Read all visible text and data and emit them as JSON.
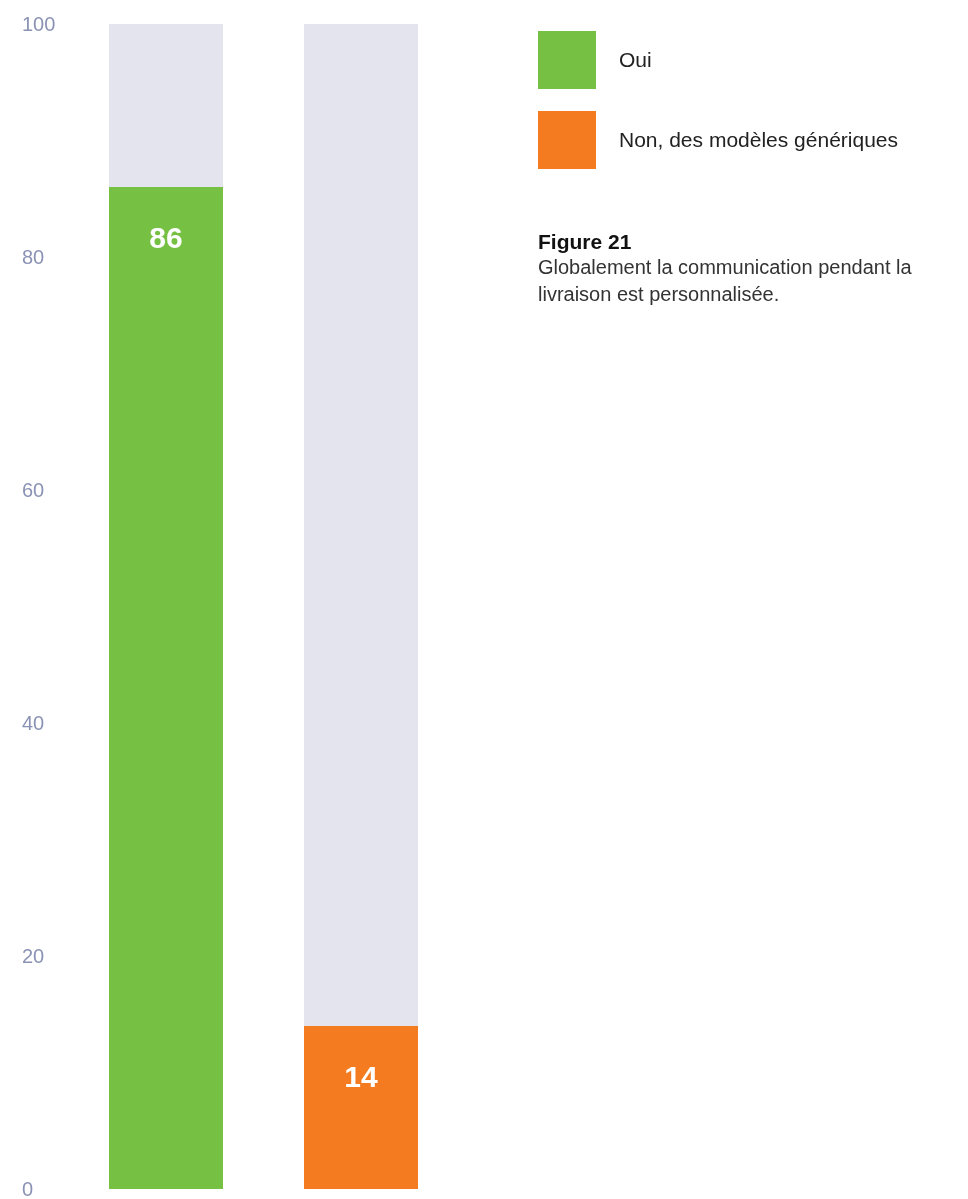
{
  "chart_data": {
    "type": "bar",
    "title": "Figure 21",
    "subtitle": "Globalement la communication pendant la livraison est personnalisée.",
    "categories": [
      null,
      null
    ],
    "stacked": true,
    "series": [
      {
        "name": "Oui",
        "color": "#76c043",
        "values": [
          86,
          null
        ]
      },
      {
        "name": "Non, des modèles génériques",
        "color": "#f47b20",
        "values": [
          null,
          14
        ]
      }
    ],
    "ylim": [
      0,
      100
    ],
    "yticks": [
      0,
      20,
      40,
      60,
      80,
      100
    ],
    "grid": false,
    "legend": "top right",
    "data_labels": true
  }
}
